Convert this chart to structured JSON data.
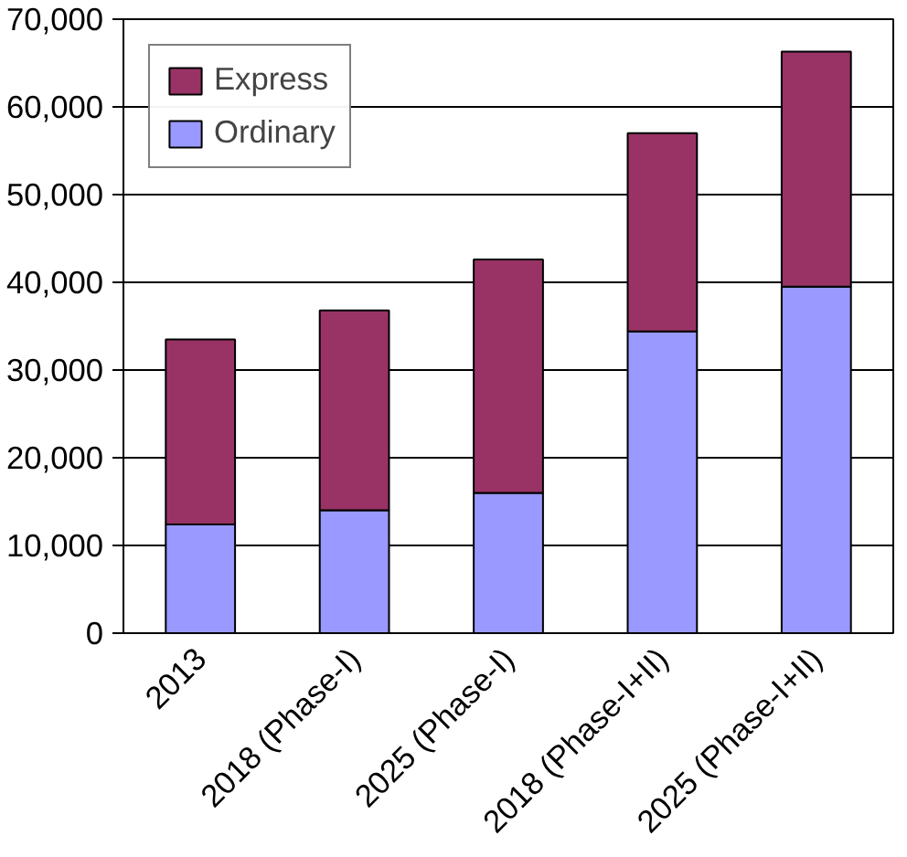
{
  "chart_data": {
    "type": "bar",
    "stacked": true,
    "categories": [
      "2013",
      "2018 (Phase-I)",
      "2025 (Phase-I)",
      "2018 (Phase-I+II)",
      "2025 (Phase-I+II)"
    ],
    "series": [
      {
        "name": "Ordinary",
        "color": "#9999ff",
        "values": [
          12400,
          14000,
          16000,
          34400,
          39500
        ]
      },
      {
        "name": "Express",
        "color": "#993366",
        "values": [
          21100,
          22800,
          26600,
          22600,
          26800
        ]
      }
    ],
    "ylim": [
      0,
      70000
    ],
    "yticks": [
      {
        "value": 0,
        "label": "0"
      },
      {
        "value": 10000,
        "label": "10,000"
      },
      {
        "value": 20000,
        "label": "20,000"
      },
      {
        "value": 30000,
        "label": "30,000"
      },
      {
        "value": 40000,
        "label": "40,000"
      },
      {
        "value": 50000,
        "label": "50,000"
      },
      {
        "value": 60000,
        "label": "60,000"
      },
      {
        "value": 70000,
        "label": "70,000"
      }
    ],
    "grid": "y",
    "legend": "top left"
  }
}
